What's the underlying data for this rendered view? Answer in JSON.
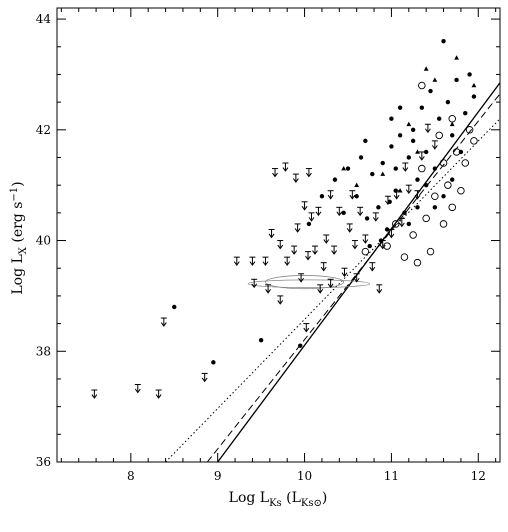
{
  "chart_data": {
    "type": "scatter",
    "xlabel": {
      "main": "Log L",
      "sub": "Ks",
      "unit_open": " (L",
      "unit_sub": "Ks⊙",
      "unit_close": ")"
    },
    "ylabel": {
      "main": "Log L",
      "sub": "X",
      "unit": " (erg s",
      "exp": "−1",
      "unit_close": ")"
    },
    "xlim": [
      7.15,
      12.25
    ],
    "ylim": [
      36,
      44.2
    ],
    "xticks": [
      8,
      9,
      10,
      11,
      12
    ],
    "yticks": [
      36,
      38,
      40,
      42,
      44
    ],
    "grid": false,
    "relations": [
      {
        "style": "solid",
        "x": [
          9.0,
          12.25
        ],
        "y": [
          36.0,
          42.85
        ]
      },
      {
        "style": "dashed",
        "x": [
          8.88,
          12.25
        ],
        "y": [
          36.0,
          42.65
        ]
      },
      {
        "style": "dotted",
        "x": [
          8.4,
          12.25
        ],
        "y": [
          36.0,
          42.2
        ]
      }
    ],
    "series": [
      {
        "marker": "upper-limit",
        "points": [
          [
            7.58,
            37.3
          ],
          [
            8.08,
            37.4
          ],
          [
            8.32,
            37.3
          ],
          [
            8.38,
            38.6
          ],
          [
            8.85,
            37.6
          ],
          [
            9.22,
            39.7
          ],
          [
            9.4,
            39.7
          ],
          [
            9.55,
            39.7
          ],
          [
            9.58,
            39.2
          ],
          [
            9.62,
            40.2
          ],
          [
            9.72,
            40.0
          ],
          [
            9.8,
            39.7
          ],
          [
            9.88,
            39.9
          ],
          [
            9.92,
            40.3
          ],
          [
            9.96,
            39.4
          ],
          [
            10.0,
            40.7
          ],
          [
            10.04,
            39.8
          ],
          [
            10.08,
            40.5
          ],
          [
            10.12,
            39.9
          ],
          [
            10.18,
            39.2
          ],
          [
            10.22,
            39.6
          ],
          [
            10.25,
            40.1
          ],
          [
            10.3,
            39.3
          ],
          [
            10.34,
            39.9
          ],
          [
            10.4,
            40.6
          ],
          [
            10.46,
            39.5
          ],
          [
            10.52,
            40.3
          ],
          [
            10.55,
            40.9
          ],
          [
            10.6,
            39.4
          ],
          [
            10.64,
            40.6
          ],
          [
            10.7,
            40.1
          ],
          [
            10.78,
            39.6
          ],
          [
            10.82,
            40.5
          ],
          [
            10.9,
            40.0
          ],
          [
            10.96,
            40.8
          ],
          [
            11.0,
            40.2
          ],
          [
            11.06,
            40.9
          ],
          [
            11.12,
            40.4
          ],
          [
            11.2,
            41.0
          ],
          [
            11.3,
            40.9
          ],
          [
            9.42,
            39.3
          ],
          [
            9.72,
            39.0
          ],
          [
            10.02,
            38.5
          ],
          [
            10.16,
            40.6
          ],
          [
            10.3,
            40.9
          ],
          [
            10.58,
            40.0
          ],
          [
            10.86,
            39.2
          ],
          [
            11.16,
            41.4
          ],
          [
            11.35,
            41.6
          ],
          [
            9.66,
            41.3
          ],
          [
            9.78,
            41.4
          ],
          [
            9.9,
            41.2
          ],
          [
            10.05,
            41.3
          ],
          [
            11.42,
            42.1
          ],
          [
            11.5,
            41.8
          ]
        ]
      },
      {
        "marker": "filled-dot",
        "points": [
          [
            8.5,
            38.8
          ],
          [
            8.95,
            37.8
          ],
          [
            9.5,
            38.2
          ],
          [
            9.95,
            38.1
          ],
          [
            10.05,
            40.3
          ],
          [
            10.2,
            40.8
          ],
          [
            10.35,
            41.1
          ],
          [
            10.45,
            40.5
          ],
          [
            10.5,
            41.3
          ],
          [
            10.6,
            40.8
          ],
          [
            10.65,
            41.5
          ],
          [
            10.72,
            40.4
          ],
          [
            10.78,
            41.2
          ],
          [
            10.85,
            40.6
          ],
          [
            10.9,
            41.4
          ],
          [
            10.95,
            40.2
          ],
          [
            11.0,
            41.7
          ],
          [
            11.05,
            40.9
          ],
          [
            11.1,
            41.9
          ],
          [
            11.15,
            40.5
          ],
          [
            11.2,
            41.5
          ],
          [
            11.25,
            42.0
          ],
          [
            11.3,
            41.1
          ],
          [
            11.35,
            42.4
          ],
          [
            11.4,
            41.6
          ],
          [
            11.45,
            42.7
          ],
          [
            11.5,
            41.3
          ],
          [
            11.55,
            42.2
          ],
          [
            11.6,
            40.8
          ],
          [
            11.65,
            42.5
          ],
          [
            11.7,
            41.9
          ],
          [
            11.75,
            42.9
          ],
          [
            11.8,
            41.6
          ],
          [
            11.85,
            42.3
          ],
          [
            11.9,
            43.0
          ],
          [
            11.95,
            42.6
          ],
          [
            11.6,
            43.6
          ],
          [
            11.2,
            40.3
          ],
          [
            11.3,
            40.6
          ],
          [
            11.05,
            41.3
          ],
          [
            10.98,
            40.7
          ],
          [
            10.88,
            40.0
          ],
          [
            10.75,
            39.9
          ],
          [
            11.4,
            41.0
          ],
          [
            11.5,
            40.6
          ],
          [
            11.7,
            41.1
          ],
          [
            11.1,
            42.4
          ],
          [
            11.0,
            42.2
          ],
          [
            10.7,
            41.8
          ],
          [
            11.25,
            41.8
          ]
        ]
      },
      {
        "marker": "open-circle",
        "points": [
          [
            10.7,
            39.8
          ],
          [
            10.95,
            39.9
          ],
          [
            11.05,
            40.3
          ],
          [
            11.15,
            39.7
          ],
          [
            11.25,
            40.1
          ],
          [
            11.3,
            39.6
          ],
          [
            11.4,
            40.4
          ],
          [
            11.45,
            39.8
          ],
          [
            11.5,
            40.8
          ],
          [
            11.6,
            40.3
          ],
          [
            11.65,
            41.0
          ],
          [
            11.7,
            40.6
          ],
          [
            11.75,
            41.6
          ],
          [
            11.8,
            40.9
          ],
          [
            11.85,
            41.4
          ],
          [
            11.9,
            42.0
          ],
          [
            11.95,
            41.8
          ],
          [
            11.7,
            42.2
          ],
          [
            11.35,
            42.8
          ],
          [
            11.55,
            41.9
          ],
          [
            11.35,
            41.3
          ],
          [
            11.6,
            41.4
          ]
        ]
      },
      {
        "marker": "triangle",
        "points": [
          [
            10.45,
            41.3
          ],
          [
            10.9,
            41.2
          ],
          [
            11.2,
            42.1
          ],
          [
            11.3,
            41.6
          ],
          [
            11.5,
            42.9
          ],
          [
            11.75,
            43.3
          ],
          [
            11.4,
            43.1
          ],
          [
            11.7,
            42.1
          ],
          [
            11.95,
            42.8
          ],
          [
            10.6,
            41.0
          ],
          [
            11.1,
            40.9
          ]
        ]
      }
    ],
    "annotations": [
      {
        "kind": "ellipse",
        "cx": 10.0,
        "cy": 39.25,
        "rx": 0.45,
        "ry": 0.12
      },
      {
        "kind": "ellipse",
        "cx": 10.05,
        "cy": 39.22,
        "rx": 0.7,
        "ry": 0.07
      }
    ]
  }
}
